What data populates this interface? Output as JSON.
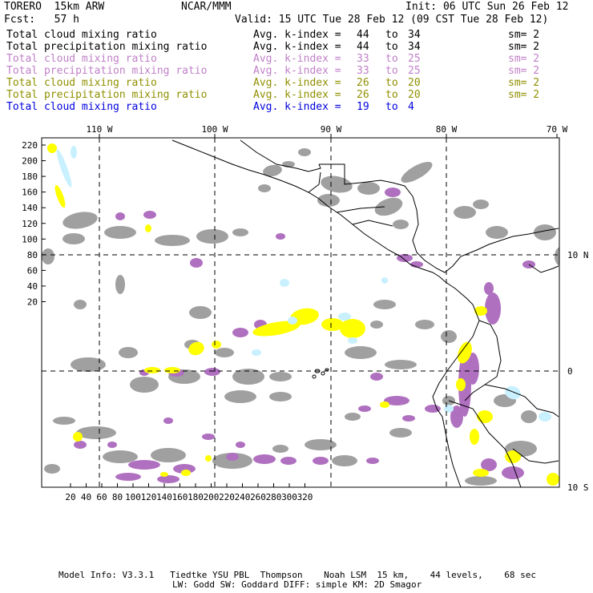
{
  "header": {
    "model": "TORERO  15km ARW",
    "org": "NCAR/MMM",
    "init": "Init: 06 UTC Sun 26 Feb 12",
    "fcst": "Fcst:   57 h",
    "valid": "Valid: 15 UTC Tue 28 Feb 12 (09 CST Tue 28 Feb 12)"
  },
  "legend": [
    {
      "field": "Total cloud mixing ratio",
      "index": "Avg. k-index = ",
      "from": "44",
      "to": "to",
      "to_val": "34",
      "sm": "sm= 2",
      "color": "#000000"
    },
    {
      "field": "Total precipitation mixing ratio",
      "index": "Avg. k-index = ",
      "from": "44",
      "to": "to",
      "to_val": "34",
      "sm": "sm= 2",
      "color": "#000000"
    },
    {
      "field": "Total cloud mixing ratio",
      "index": "Avg. k-index = ",
      "from": "33",
      "to": "to",
      "to_val": "25",
      "sm": "sm= 2",
      "color": "#c080c8"
    },
    {
      "field": "Total precipitation mixing ratio",
      "index": "Avg. k-index = ",
      "from": "33",
      "to": "to",
      "to_val": "25",
      "sm": "sm= 2",
      "color": "#c080c8"
    },
    {
      "field": "Total cloud mixing ratio",
      "index": "Avg. k-index = ",
      "from": "26",
      "to": "to",
      "to_val": "20",
      "sm": "sm= 2",
      "color": "#909000"
    },
    {
      "field": "Total precipitation mixing ratio",
      "index": "Avg. k-index = ",
      "from": "26",
      "to": "to",
      "to_val": "20",
      "sm": "sm= 2",
      "color": "#909000"
    },
    {
      "field": "Total cloud mixing ratio",
      "index": "Avg. k-index = ",
      "from": "19",
      "to": "to",
      "to_val": "4",
      "sm": "",
      "color": "#0000e0"
    }
  ],
  "map": {
    "lon_labels": [
      "110 W",
      "100 W",
      "90 W",
      "80 W",
      "70 W"
    ],
    "lat_labels": [
      "10 N",
      "0",
      "10 S"
    ],
    "y_ticks": [
      "220",
      "200",
      "180",
      "160",
      "140",
      "120",
      "100",
      "80",
      "60",
      "40",
      "20"
    ],
    "x_ticks": [
      "20",
      "40",
      "60",
      "80",
      "100",
      "120",
      "140",
      "160",
      "180",
      "200",
      "220",
      "240",
      "260",
      "280",
      "300",
      "320"
    ],
    "colors": {
      "gray": "#a0a0a0",
      "purple": "#b070c0",
      "yellow": "#ffff00",
      "lightblue": "#c8f0ff",
      "border": "#000000"
    }
  },
  "footer": {
    "line1": "Model Info: V3.3.1   Tiedtke YSU PBL  Thompson    Noah LSM  15 km,    44 levels,    68 sec",
    "line2": "LW: Godd SW: Goddard DIFF: simple KM: 2D Smagor"
  }
}
